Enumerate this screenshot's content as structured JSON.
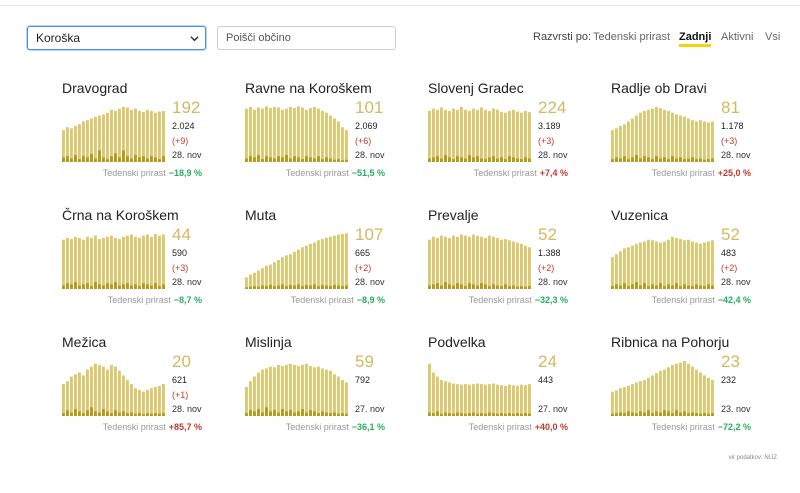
{
  "region_select": {
    "value": "Koroška"
  },
  "search": {
    "placeholder": "Poišči občino"
  },
  "sort": {
    "label": "Razvrsti po:",
    "options": [
      "Tedenski prirast",
      "Zadnji",
      "Aktivni",
      "Vsi"
    ],
    "active": "Zadnji"
  },
  "growth_label": "Tedenski prirast",
  "source": "vir podatkov: NIJZ",
  "colors": {
    "bar": "#dcc86f",
    "bar_dark": "#b49a16",
    "number": "#d3b961",
    "accent": "#f5d20a",
    "neg": "#27ae60",
    "pos": "#c0392b"
  },
  "cards": [
    {
      "name": "Dravograd",
      "active": "192",
      "total": "2.024",
      "delta": "(+9)",
      "date": "28. nov",
      "growth": "−18,9 %",
      "trend": "neg",
      "bars": [
        0.55,
        0.6,
        0.58,
        0.62,
        0.65,
        0.7,
        0.72,
        0.75,
        0.78,
        0.8,
        0.82,
        0.85,
        0.9,
        0.88,
        0.92,
        0.95,
        0.94,
        0.9,
        0.92,
        0.88,
        0.86,
        0.9,
        0.88,
        0.85,
        0.87,
        0.88
      ],
      "dark": [
        0.08,
        0.1,
        0.06,
        0.12,
        0.05,
        0.1,
        0.08,
        0.14,
        0.06,
        0.2,
        0.08,
        0.05,
        0.1,
        0.15,
        0.08,
        0.2,
        0.1,
        0.06,
        0.12,
        0.08,
        0.1,
        0.06,
        0.1,
        0.08,
        0.05,
        0.1
      ]
    },
    {
      "name": "Ravne na Koroškem",
      "active": "101",
      "total": "2.069",
      "delta": "(+6)",
      "date": "28. nov",
      "growth": "−51,5 %",
      "trend": "neg",
      "bars": [
        0.92,
        0.95,
        0.9,
        0.94,
        0.92,
        0.96,
        0.93,
        0.95,
        0.94,
        0.9,
        0.92,
        0.95,
        0.93,
        0.96,
        0.94,
        0.9,
        0.93,
        0.95,
        0.92,
        0.88,
        0.85,
        0.8,
        0.75,
        0.7,
        0.6,
        0.55
      ],
      "dark": [
        0.06,
        0.1,
        0.08,
        0.12,
        0.05,
        0.1,
        0.08,
        0.06,
        0.1,
        0.08,
        0.12,
        0.06,
        0.1,
        0.08,
        0.05,
        0.1,
        0.08,
        0.06,
        0.1,
        0.05,
        0.08,
        0.06,
        0.04,
        0.05,
        0.03,
        0.04
      ]
    },
    {
      "name": "Slovenj Gradec",
      "active": "224",
      "total": "3.189",
      "delta": "(+3)",
      "date": "28. nov",
      "growth": "+7,4 %",
      "trend": "pos",
      "bars": [
        0.88,
        0.92,
        0.9,
        0.94,
        0.9,
        0.88,
        0.92,
        0.9,
        0.95,
        0.9,
        0.88,
        0.92,
        0.9,
        0.94,
        0.9,
        0.88,
        0.92,
        0.9,
        0.86,
        0.85,
        0.88,
        0.9,
        0.87,
        0.85,
        0.88,
        0.86
      ],
      "dark": [
        0.06,
        0.08,
        0.1,
        0.06,
        0.12,
        0.08,
        0.05,
        0.1,
        0.08,
        0.06,
        0.12,
        0.08,
        0.1,
        0.06,
        0.05,
        0.08,
        0.1,
        0.06,
        0.08,
        0.05,
        0.1,
        0.08,
        0.06,
        0.05,
        0.08,
        0.06
      ]
    },
    {
      "name": "Radlje ob Dravi",
      "active": "81",
      "total": "1.178",
      "delta": "(+3)",
      "date": "28. nov",
      "growth": "+25,0 %",
      "trend": "pos",
      "bars": [
        0.55,
        0.58,
        0.62,
        0.65,
        0.7,
        0.75,
        0.8,
        0.85,
        0.88,
        0.9,
        0.92,
        0.95,
        0.93,
        0.9,
        0.88,
        0.85,
        0.82,
        0.8,
        0.78,
        0.75,
        0.72,
        0.7,
        0.72,
        0.7,
        0.68,
        0.7
      ],
      "dark": [
        0.05,
        0.08,
        0.06,
        0.1,
        0.05,
        0.08,
        0.12,
        0.06,
        0.1,
        0.08,
        0.05,
        0.1,
        0.06,
        0.08,
        0.05,
        0.1,
        0.06,
        0.08,
        0.05,
        0.06,
        0.08,
        0.05,
        0.06,
        0.04,
        0.05,
        0.06
      ]
    },
    {
      "name": "Črna na Koroškem",
      "active": "44",
      "total": "590",
      "delta": "(+3)",
      "date": "28. nov",
      "growth": "−8,7 %",
      "trend": "neg",
      "bars": [
        0.85,
        0.88,
        0.86,
        0.9,
        0.88,
        0.85,
        0.9,
        0.88,
        0.92,
        0.86,
        0.88,
        0.9,
        0.92,
        0.88,
        0.86,
        0.9,
        0.92,
        0.94,
        0.9,
        0.88,
        0.92,
        0.94,
        0.9,
        0.95,
        0.92,
        0.94
      ],
      "dark": [
        0.06,
        0.1,
        0.08,
        0.12,
        0.06,
        0.08,
        0.1,
        0.05,
        0.12,
        0.08,
        0.06,
        0.1,
        0.08,
        0.12,
        0.06,
        0.08,
        0.1,
        0.06,
        0.08,
        0.05,
        0.1,
        0.08,
        0.06,
        0.1,
        0.05,
        0.08
      ]
    },
    {
      "name": "Muta",
      "active": "107",
      "total": "665",
      "delta": "(+2)",
      "date": "28. nov",
      "growth": "−8,9 %",
      "trend": "neg",
      "bars": [
        0.2,
        0.25,
        0.28,
        0.32,
        0.36,
        0.4,
        0.42,
        0.46,
        0.5,
        0.55,
        0.58,
        0.6,
        0.64,
        0.68,
        0.72,
        0.75,
        0.78,
        0.8,
        0.84,
        0.86,
        0.88,
        0.9,
        0.92,
        0.94,
        0.95,
        0.96
      ],
      "dark": [
        0.03,
        0.04,
        0.05,
        0.04,
        0.06,
        0.05,
        0.07,
        0.05,
        0.06,
        0.08,
        0.05,
        0.07,
        0.06,
        0.08,
        0.05,
        0.07,
        0.06,
        0.08,
        0.05,
        0.07,
        0.06,
        0.05,
        0.07,
        0.06,
        0.05,
        0.06
      ]
    },
    {
      "name": "Prevalje",
      "active": "52",
      "total": "1.388",
      "delta": "(+2)",
      "date": "28. nov",
      "growth": "−32,3 %",
      "trend": "neg",
      "bars": [
        0.85,
        0.9,
        0.88,
        0.92,
        0.9,
        0.88,
        0.92,
        0.9,
        0.94,
        0.92,
        0.9,
        0.94,
        0.92,
        0.9,
        0.88,
        0.92,
        0.9,
        0.88,
        0.85,
        0.86,
        0.84,
        0.82,
        0.8,
        0.78,
        0.75,
        0.72
      ],
      "dark": [
        0.06,
        0.08,
        0.1,
        0.06,
        0.12,
        0.08,
        0.06,
        0.1,
        0.08,
        0.05,
        0.1,
        0.08,
        0.06,
        0.1,
        0.08,
        0.05,
        0.08,
        0.06,
        0.05,
        0.08,
        0.05,
        0.06,
        0.04,
        0.05,
        0.04,
        0.05
      ]
    },
    {
      "name": "Vuzenica",
      "active": "52",
      "total": "483",
      "delta": "(+2)",
      "date": "28. nov",
      "growth": "−42,4 %",
      "trend": "neg",
      "bars": [
        0.55,
        0.6,
        0.65,
        0.7,
        0.72,
        0.75,
        0.78,
        0.8,
        0.82,
        0.85,
        0.84,
        0.82,
        0.8,
        0.82,
        0.85,
        0.9,
        0.88,
        0.86,
        0.84,
        0.85,
        0.82,
        0.8,
        0.78,
        0.8,
        0.82,
        0.84
      ],
      "dark": [
        0.05,
        0.08,
        0.06,
        0.1,
        0.05,
        0.08,
        0.12,
        0.06,
        0.1,
        0.05,
        0.08,
        0.06,
        0.1,
        0.05,
        0.08,
        0.06,
        0.1,
        0.05,
        0.08,
        0.06,
        0.05,
        0.08,
        0.06,
        0.05,
        0.08,
        0.06
      ]
    },
    {
      "name": "Mežica",
      "active": "20",
      "total": "621",
      "delta": "(+1)",
      "date": "28. nov",
      "growth": "+85,7 %",
      "trend": "pos",
      "bars": [
        0.55,
        0.6,
        0.68,
        0.72,
        0.75,
        0.7,
        0.8,
        0.85,
        0.9,
        0.88,
        0.85,
        0.8,
        0.88,
        0.85,
        0.78,
        0.7,
        0.62,
        0.55,
        0.48,
        0.45,
        0.42,
        0.45,
        0.48,
        0.5,
        0.52,
        0.55
      ],
      "dark": [
        0.05,
        0.1,
        0.06,
        0.12,
        0.08,
        0.05,
        0.1,
        0.15,
        0.08,
        0.06,
        0.12,
        0.08,
        0.05,
        0.1,
        0.06,
        0.08,
        0.05,
        0.06,
        0.04,
        0.05,
        0.03,
        0.05,
        0.04,
        0.05,
        0.04,
        0.05
      ]
    },
    {
      "name": "Mislinja",
      "active": "59",
      "total": "792",
      "delta": "",
      "date": "27. nov",
      "growth": "−36,1 %",
      "trend": "neg",
      "bars": [
        0.5,
        0.6,
        0.68,
        0.75,
        0.8,
        0.82,
        0.85,
        0.84,
        0.88,
        0.86,
        0.88,
        0.9,
        0.88,
        0.86,
        0.88,
        0.9,
        0.86,
        0.84,
        0.85,
        0.82,
        0.8,
        0.78,
        0.72,
        0.68,
        0.62,
        0.58
      ],
      "dark": [
        0.05,
        0.1,
        0.08,
        0.12,
        0.06,
        0.15,
        0.08,
        0.1,
        0.06,
        0.12,
        0.08,
        0.1,
        0.06,
        0.08,
        0.12,
        0.06,
        0.1,
        0.08,
        0.05,
        0.08,
        0.06,
        0.05,
        0.06,
        0.04,
        0.05,
        0.04
      ]
    },
    {
      "name": "Podvelka",
      "active": "24",
      "total": "443",
      "delta": "",
      "date": "27. nov",
      "growth": "+40,0 %",
      "trend": "pos",
      "bars": [
        0.9,
        0.75,
        0.68,
        0.62,
        0.6,
        0.58,
        0.56,
        0.55,
        0.54,
        0.55,
        0.54,
        0.55,
        0.56,
        0.55,
        0.54,
        0.55,
        0.56,
        0.54,
        0.53,
        0.52,
        0.54,
        0.53,
        0.52,
        0.54,
        0.53,
        0.55
      ],
      "dark": [
        0.06,
        0.05,
        0.08,
        0.04,
        0.06,
        0.05,
        0.04,
        0.06,
        0.05,
        0.04,
        0.05,
        0.06,
        0.04,
        0.05,
        0.04,
        0.06,
        0.05,
        0.04,
        0.05,
        0.04,
        0.05,
        0.04,
        0.05,
        0.04,
        0.05,
        0.04
      ]
    },
    {
      "name": "Ribnica na Pohorju",
      "active": "23",
      "total": "232",
      "delta": "",
      "date": "23. nov",
      "growth": "−72,2 %",
      "trend": "neg",
      "bars": [
        0.42,
        0.44,
        0.48,
        0.5,
        0.52,
        0.55,
        0.58,
        0.6,
        0.62,
        0.66,
        0.7,
        0.74,
        0.78,
        0.8,
        0.84,
        0.88,
        0.9,
        0.92,
        0.95,
        0.9,
        0.85,
        0.8,
        0.75,
        0.7,
        0.66,
        0.62
      ],
      "dark": [
        0.04,
        0.05,
        0.06,
        0.05,
        0.08,
        0.06,
        0.05,
        0.08,
        0.06,
        0.1,
        0.05,
        0.08,
        0.06,
        0.1,
        0.08,
        0.05,
        0.1,
        0.06,
        0.08,
        0.05,
        0.06,
        0.05,
        0.04,
        0.05,
        0.04,
        0.05
      ]
    }
  ]
}
